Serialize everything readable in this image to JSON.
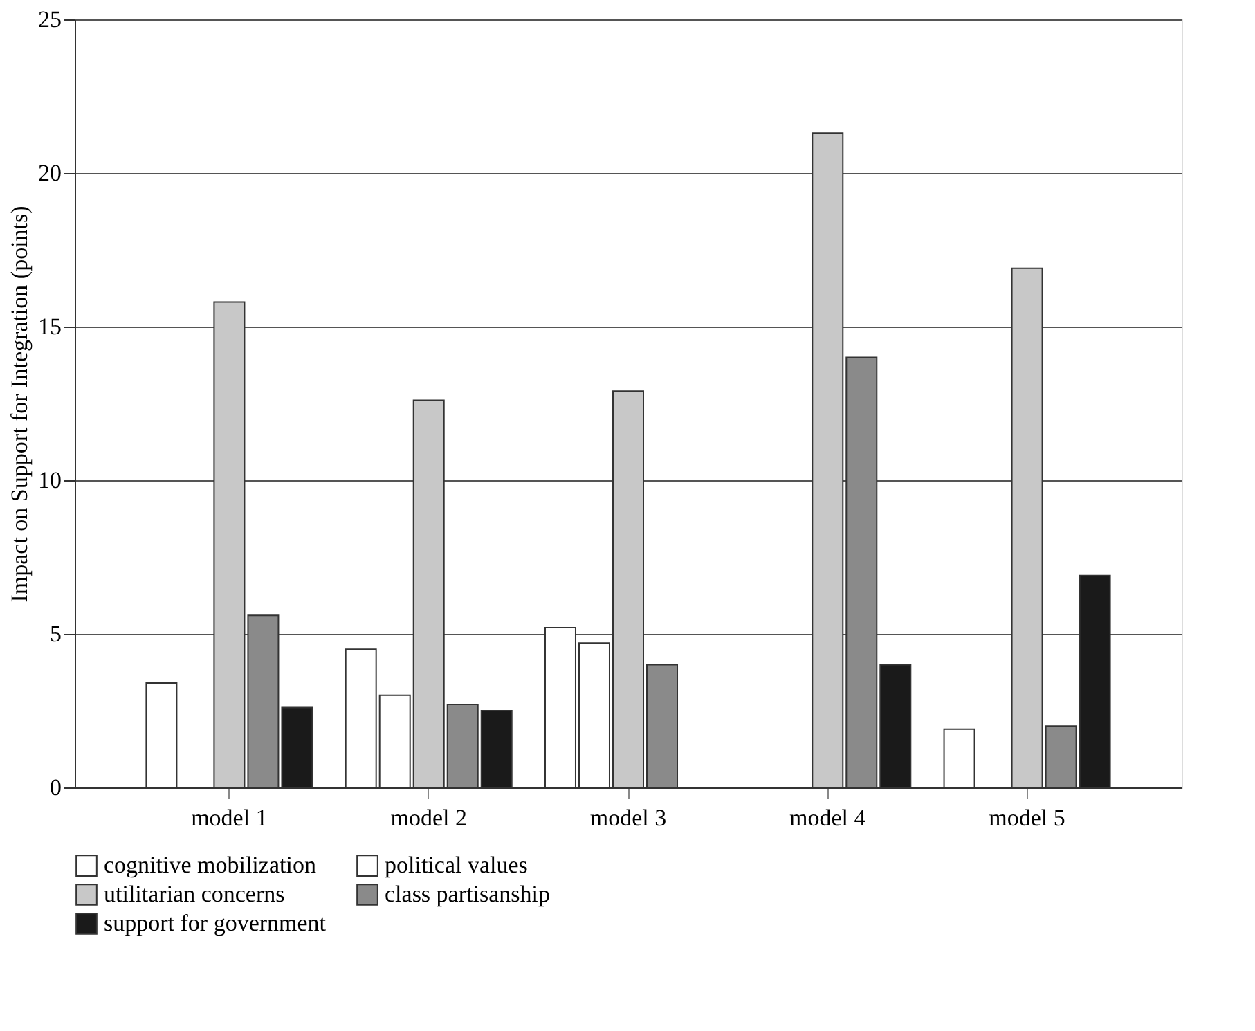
{
  "chart_data": {
    "type": "bar",
    "ylabel": "Impact on Support for Integration (points)",
    "categories": [
      "model 1",
      "model 2",
      "model 3",
      "model 4",
      "model 5"
    ],
    "series": [
      {
        "name": "cognitive mobilization",
        "color": "#ffffff",
        "values": [
          3.4,
          4.5,
          5.2,
          null,
          1.9
        ]
      },
      {
        "name": "political values",
        "color": "#ffffff",
        "values": [
          null,
          3.0,
          4.7,
          null,
          null
        ]
      },
      {
        "name": "utilitarian concerns",
        "color": "#c8c8c8",
        "values": [
          15.8,
          12.6,
          12.9,
          21.3,
          16.9
        ]
      },
      {
        "name": "class partisanship",
        "color": "#8a8a8a",
        "values": [
          5.6,
          2.7,
          4.0,
          14.0,
          2.0
        ]
      },
      {
        "name": "support for government",
        "color": "#1a1a1a",
        "values": [
          2.6,
          2.5,
          null,
          4.0,
          6.9
        ]
      }
    ],
    "ylim": [
      0,
      25
    ],
    "yticks": [
      0,
      5,
      10,
      15,
      20,
      25
    ],
    "grid": "y",
    "legend": "bottom"
  }
}
